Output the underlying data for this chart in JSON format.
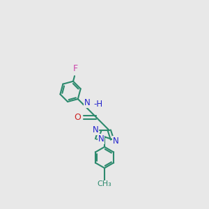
{
  "background_color": "#e8e8e8",
  "bond_color": "#2d8a6e",
  "nitrogen_color": "#2222cc",
  "oxygen_color": "#cc2222",
  "fluorine_color": "#cc44aa",
  "line_width": 1.5,
  "dbo": 0.035,
  "xlim": [
    -1.0,
    2.2
  ],
  "ylim": [
    -0.5,
    3.8
  ],
  "figsize": [
    3.0,
    3.0
  ],
  "dpi": 100
}
